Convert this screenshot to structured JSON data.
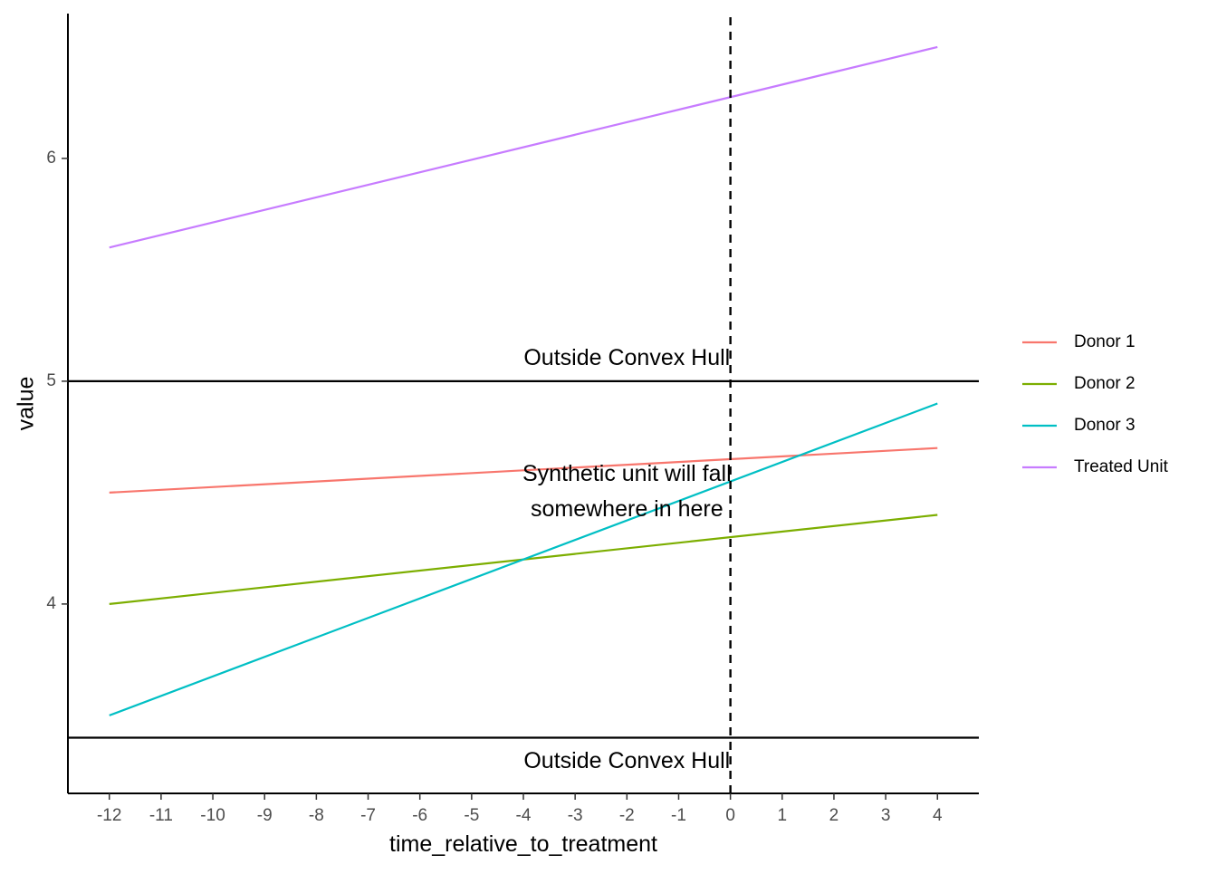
{
  "chart_data": {
    "type": "line",
    "title": "",
    "xlabel": "time_relative_to_treatment",
    "ylabel": "value",
    "xlim": [
      -12.8,
      4.8
    ],
    "ylim": [
      3.15,
      6.65
    ],
    "x_ticks": [
      -12,
      -11,
      -10,
      -9,
      -8,
      -7,
      -6,
      -5,
      -4,
      -3,
      -2,
      -1,
      0,
      1,
      2,
      3,
      4
    ],
    "y_ticks": [
      4,
      5,
      6
    ],
    "grid": false,
    "legend_position": "right",
    "series": [
      {
        "name": "Donor 1",
        "color": "#F8766D",
        "x": [
          -12,
          4
        ],
        "values": [
          4.5,
          4.7
        ]
      },
      {
        "name": "Donor 2",
        "color": "#7CAE00",
        "x": [
          -12,
          4
        ],
        "values": [
          4.0,
          4.4
        ]
      },
      {
        "name": "Donor 3",
        "color": "#00BFC4",
        "x": [
          -12,
          4
        ],
        "values": [
          3.5,
          4.9
        ]
      },
      {
        "name": "Treated Unit",
        "color": "#C77CFF",
        "x": [
          -12,
          4
        ],
        "values": [
          5.6,
          6.5
        ]
      }
    ],
    "hlines": [
      5.0,
      3.4
    ],
    "vline": 0,
    "annotations": [
      {
        "text": "Outside Convex Hull",
        "x": -2,
        "y": 5.1
      },
      {
        "text": "Synthetic unit will fall",
        "x": -2,
        "y": 4.58
      },
      {
        "text": "somewhere in here",
        "x": -2,
        "y": 4.42
      },
      {
        "text": "Outside Convex Hull",
        "x": -2,
        "y": 3.29
      }
    ]
  }
}
